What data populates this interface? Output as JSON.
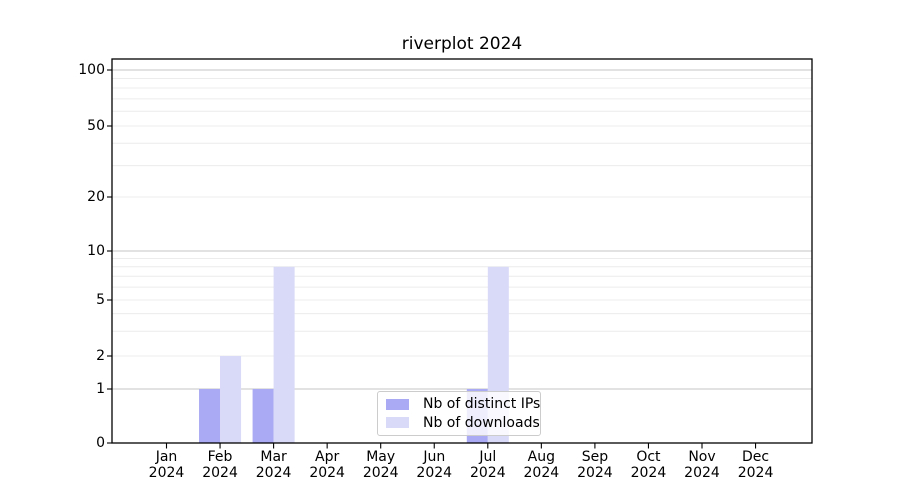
{
  "figure": {
    "title": "riverplot 2024"
  },
  "chart_data": {
    "type": "bar",
    "title": "riverplot 2024",
    "categories": [
      "Jan",
      "Feb",
      "Mar",
      "Apr",
      "May",
      "Jun",
      "Jul",
      "Aug",
      "Sep",
      "Oct",
      "Nov",
      "Dec"
    ],
    "category_year": "2024",
    "series": [
      {
        "name": "Nb of distinct IPs",
        "color": "#a9a9f4",
        "values": [
          0,
          1,
          1,
          0,
          0,
          0,
          1,
          0,
          0,
          0,
          0,
          0
        ]
      },
      {
        "name": "Nb of downloads",
        "color": "#d9d9f8",
        "values": [
          0,
          2,
          8,
          0,
          0,
          0,
          8,
          0,
          0,
          0,
          0,
          0
        ]
      }
    ],
    "xlabel": "",
    "ylabel": "",
    "yticks": [
      0,
      1,
      2,
      5,
      10,
      20,
      50,
      100
    ],
    "minor_yticks": [
      3,
      4,
      6,
      7,
      8,
      9,
      30,
      40,
      60,
      70,
      80,
      90
    ],
    "scale": "symlog",
    "ylim": [
      0,
      100
    ],
    "grid": "horizontal",
    "legend": {
      "position": "lower-center-inset",
      "labels": [
        "Nb of distinct IPs",
        "Nb of downloads"
      ]
    }
  },
  "colors": {
    "major_grid": "#c6c6c6",
    "minor_grid": "#ececec",
    "axis": "#000000",
    "background": "#ffffff"
  }
}
